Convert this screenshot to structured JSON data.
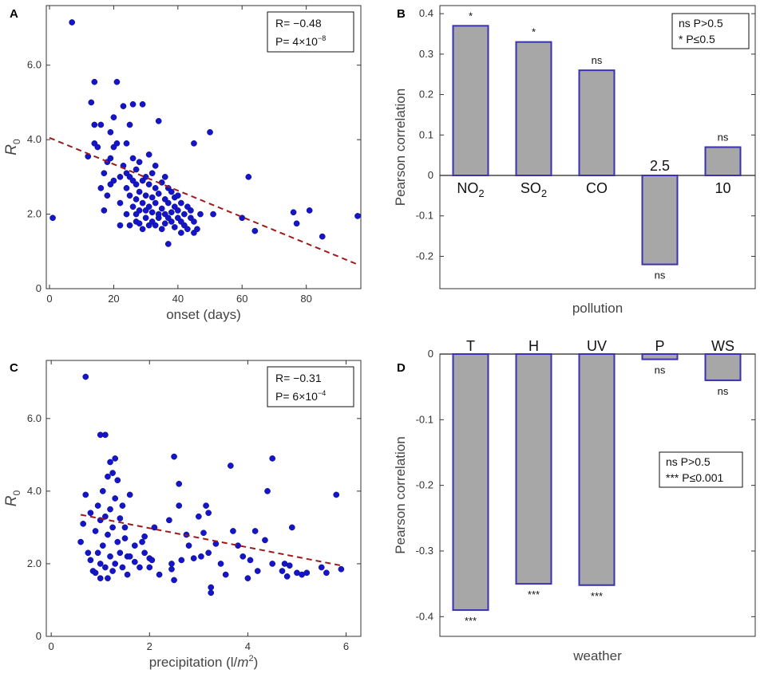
{
  "chart_data": [
    {
      "panel": "A",
      "type": "scatter",
      "xlabel": "onset (days)",
      "ylabel": "R0",
      "xlim": [
        -1,
        97
      ],
      "ylim": [
        0,
        7.6
      ],
      "xticks": [
        "0",
        "20",
        "40",
        "60",
        "80"
      ],
      "yticks": [
        "0",
        "2.0",
        "4.0",
        "6.0"
      ],
      "stats": [
        "R= −0.48",
        "P= 4×10",
        "−8"
      ],
      "fit": {
        "x": [
          0,
          96
        ],
        "y": [
          4.05,
          0.65
        ]
      },
      "points": [
        [
          1,
          1.9
        ],
        [
          7,
          7.15
        ],
        [
          12,
          3.55
        ],
        [
          13,
          5.0
        ],
        [
          14,
          4.4
        ],
        [
          14,
          3.9
        ],
        [
          14,
          5.55
        ],
        [
          15,
          3.8
        ],
        [
          16,
          2.7
        ],
        [
          16,
          4.4
        ],
        [
          17,
          2.1
        ],
        [
          17,
          3.1
        ],
        [
          18,
          2.5
        ],
        [
          18,
          3.4
        ],
        [
          19,
          2.8
        ],
        [
          19,
          3.5
        ],
        [
          19,
          4.2
        ],
        [
          20,
          2.9
        ],
        [
          20,
          3.8
        ],
        [
          20,
          4.6
        ],
        [
          21,
          3.9
        ],
        [
          21,
          5.55
        ],
        [
          22,
          1.7
        ],
        [
          22,
          2.3
        ],
        [
          22,
          3.0
        ],
        [
          23,
          3.3
        ],
        [
          23,
          4.9
        ],
        [
          24,
          2.0
        ],
        [
          24,
          2.7
        ],
        [
          24,
          3.1
        ],
        [
          24,
          3.9
        ],
        [
          25,
          1.7
        ],
        [
          25,
          2.5
        ],
        [
          25,
          3.0
        ],
        [
          25,
          4.4
        ],
        [
          26,
          2.2
        ],
        [
          26,
          2.9
        ],
        [
          26,
          3.5
        ],
        [
          26,
          4.95
        ],
        [
          27,
          1.8
        ],
        [
          27,
          2.0
        ],
        [
          27,
          2.4
        ],
        [
          27,
          2.8
        ],
        [
          27,
          3.2
        ],
        [
          28,
          1.75
        ],
        [
          28,
          2.1
        ],
        [
          28,
          2.6
        ],
        [
          28,
          3.4
        ],
        [
          29,
          1.6
        ],
        [
          29,
          2.3
        ],
        [
          29,
          2.9
        ],
        [
          29,
          4.95
        ],
        [
          30,
          1.9
        ],
        [
          30,
          2.1
        ],
        [
          30,
          2.5
        ],
        [
          30,
          3.0
        ],
        [
          31,
          1.7
        ],
        [
          31,
          2.2
        ],
        [
          31,
          2.8
        ],
        [
          31,
          3.6
        ],
        [
          32,
          1.8
        ],
        [
          32,
          2.05
        ],
        [
          32,
          2.45
        ],
        [
          32,
          3.1
        ],
        [
          33,
          1.7
        ],
        [
          33,
          2.3
        ],
        [
          33,
          2.7
        ],
        [
          33,
          3.3
        ],
        [
          34,
          1.9
        ],
        [
          34,
          2.0
        ],
        [
          34,
          2.55
        ],
        [
          34,
          4.5
        ],
        [
          35,
          1.6
        ],
        [
          35,
          2.15
        ],
        [
          35,
          2.85
        ],
        [
          36,
          1.75
        ],
        [
          36,
          2.0
        ],
        [
          36,
          2.4
        ],
        [
          36,
          3.0
        ],
        [
          37,
          1.2
        ],
        [
          37,
          1.9
        ],
        [
          37,
          2.3
        ],
        [
          37,
          2.7
        ],
        [
          38,
          1.8
        ],
        [
          38,
          2.05
        ],
        [
          38,
          2.6
        ],
        [
          39,
          1.65
        ],
        [
          39,
          2.2
        ],
        [
          39,
          2.45
        ],
        [
          40,
          1.9
        ],
        [
          40,
          2.1
        ],
        [
          40,
          2.5
        ],
        [
          41,
          1.5
        ],
        [
          41,
          1.8
        ],
        [
          41,
          2.3
        ],
        [
          42,
          1.7
        ],
        [
          42,
          2.0
        ],
        [
          43,
          1.6
        ],
        [
          43,
          2.2
        ],
        [
          44,
          1.9
        ],
        [
          44,
          2.1
        ],
        [
          45,
          1.5
        ],
        [
          45,
          1.8
        ],
        [
          45,
          3.9
        ],
        [
          46,
          1.6
        ],
        [
          47,
          2.0
        ],
        [
          50,
          4.2
        ],
        [
          51,
          2.0
        ],
        [
          60,
          1.9
        ],
        [
          62,
          3.0
        ],
        [
          64,
          1.55
        ],
        [
          76,
          2.05
        ],
        [
          77,
          1.75
        ],
        [
          81,
          2.1
        ],
        [
          85,
          1.4
        ],
        [
          96,
          1.95
        ]
      ]
    },
    {
      "panel": "B",
      "type": "bar",
      "xlabel": "pollution",
      "ylabel": "Pearson correlation",
      "ylim": [
        -0.28,
        0.42
      ],
      "yticks": [
        "-0.2",
        "-0.1",
        "0",
        "0.1",
        "0.2",
        "0.3",
        "0.4"
      ],
      "categories": [
        "NO2",
        "SO2",
        "CO",
        "2.5",
        "10"
      ],
      "values": [
        0.37,
        0.33,
        0.26,
        -0.22,
        0.07
      ],
      "significance": [
        "*",
        "*",
        "ns",
        "ns",
        "ns"
      ],
      "legend": [
        "ns P>0.5",
        "* P≤0.5"
      ]
    },
    {
      "panel": "C",
      "type": "scatter",
      "xlabel": "precipitation (l/m2)",
      "ylabel": "R0",
      "xlim": [
        -0.1,
        6.3
      ],
      "ylim": [
        0,
        7.6
      ],
      "xticks": [
        "0",
        "2",
        "4",
        "6"
      ],
      "yticks": [
        "0",
        "2.0",
        "4.0",
        "6.0"
      ],
      "stats": [
        "R= −0.31",
        "P= 6×10",
        "−4"
      ],
      "fit": {
        "x": [
          0.6,
          5.9
        ],
        "y": [
          3.35,
          1.95
        ]
      },
      "points": [
        [
          0.6,
          2.6
        ],
        [
          0.7,
          7.15
        ],
        [
          0.7,
          3.9
        ],
        [
          0.75,
          2.3
        ],
        [
          0.8,
          3.4
        ],
        [
          0.8,
          2.1
        ],
        [
          0.85,
          1.8
        ],
        [
          0.9,
          2.9
        ],
        [
          0.9,
          1.75
        ],
        [
          0.95,
          3.6
        ],
        [
          0.95,
          2.3
        ],
        [
          1.0,
          5.55
        ],
        [
          1.0,
          3.2
        ],
        [
          1.0,
          2.0
        ],
        [
          1.0,
          1.6
        ],
        [
          1.05,
          4.0
        ],
        [
          1.05,
          2.5
        ],
        [
          1.1,
          3.3
        ],
        [
          1.1,
          1.9
        ],
        [
          1.1,
          5.55
        ],
        [
          1.15,
          4.4
        ],
        [
          1.15,
          2.8
        ],
        [
          1.15,
          1.6
        ],
        [
          1.2,
          4.8
        ],
        [
          1.2,
          3.5
        ],
        [
          1.2,
          2.2
        ],
        [
          1.25,
          4.5
        ],
        [
          1.25,
          3.0
        ],
        [
          1.25,
          1.8
        ],
        [
          1.3,
          4.9
        ],
        [
          1.3,
          3.8
        ],
        [
          1.3,
          2.0
        ],
        [
          1.35,
          4.3
        ],
        [
          1.35,
          2.6
        ],
        [
          1.4,
          3.25
        ],
        [
          1.4,
          2.3
        ],
        [
          1.45,
          3.6
        ],
        [
          1.45,
          1.9
        ],
        [
          1.5,
          3.0
        ],
        [
          1.5,
          2.7
        ],
        [
          1.55,
          2.2
        ],
        [
          1.55,
          1.7
        ],
        [
          1.6,
          3.9
        ],
        [
          1.6,
          2.2
        ],
        [
          1.7,
          2.5
        ],
        [
          1.7,
          2.05
        ],
        [
          1.8,
          1.9
        ],
        [
          1.9,
          2.3
        ],
        [
          1.9,
          2.75
        ],
        [
          2.0,
          2.15
        ],
        [
          2.0,
          1.9
        ],
        [
          2.1,
          3.0
        ],
        [
          2.2,
          1.7
        ],
        [
          2.4,
          3.2
        ],
        [
          2.45,
          1.85
        ],
        [
          2.5,
          1.55
        ],
        [
          2.6,
          4.2
        ],
        [
          2.6,
          3.6
        ],
        [
          2.65,
          2.1
        ],
        [
          2.75,
          2.8
        ],
        [
          2.8,
          2.5
        ],
        [
          2.9,
          2.15
        ],
        [
          3.0,
          3.3
        ],
        [
          3.05,
          2.2
        ],
        [
          3.1,
          2.85
        ],
        [
          3.15,
          3.6
        ],
        [
          3.2,
          3.4
        ],
        [
          3.2,
          2.3
        ],
        [
          3.25,
          1.35
        ],
        [
          3.25,
          1.2
        ],
        [
          3.35,
          2.55
        ],
        [
          3.45,
          2.0
        ],
        [
          3.55,
          1.7
        ],
        [
          3.65,
          4.7
        ],
        [
          3.7,
          2.9
        ],
        [
          3.8,
          2.5
        ],
        [
          3.9,
          2.2
        ],
        [
          4.0,
          1.6
        ],
        [
          4.05,
          2.1
        ],
        [
          4.15,
          2.9
        ],
        [
          4.2,
          1.8
        ],
        [
          4.35,
          2.65
        ],
        [
          4.4,
          4.0
        ],
        [
          4.5,
          2.0
        ],
        [
          4.5,
          4.9
        ],
        [
          4.7,
          1.8
        ],
        [
          4.75,
          2.0
        ],
        [
          4.8,
          1.65
        ],
        [
          4.85,
          1.95
        ],
        [
          4.9,
          3.0
        ],
        [
          5.0,
          1.75
        ],
        [
          5.1,
          1.7
        ],
        [
          5.2,
          1.75
        ],
        [
          5.5,
          1.9
        ],
        [
          5.6,
          1.75
        ],
        [
          5.8,
          3.9
        ],
        [
          5.9,
          1.85
        ],
        [
          2.5,
          4.95
        ],
        [
          2.05,
          2.1
        ],
        [
          1.85,
          2.6
        ],
        [
          0.65,
          3.1
        ],
        [
          2.45,
          2.0
        ]
      ]
    },
    {
      "panel": "D",
      "type": "bar",
      "xlabel": "weather",
      "ylabel": "Pearson correlation",
      "ylim": [
        -0.43,
        0.0
      ],
      "yticks": [
        "-0.4",
        "-0.3",
        "-0.2",
        "-0.1",
        "0"
      ],
      "categories": [
        "T",
        "H",
        "UV",
        "P",
        "WS"
      ],
      "values": [
        -0.39,
        -0.35,
        -0.352,
        -0.008,
        -0.04
      ],
      "significance": [
        "***",
        "***",
        "***",
        "ns",
        "ns"
      ],
      "legend": [
        "ns P>0.5",
        "*** P≤0.001"
      ]
    }
  ]
}
